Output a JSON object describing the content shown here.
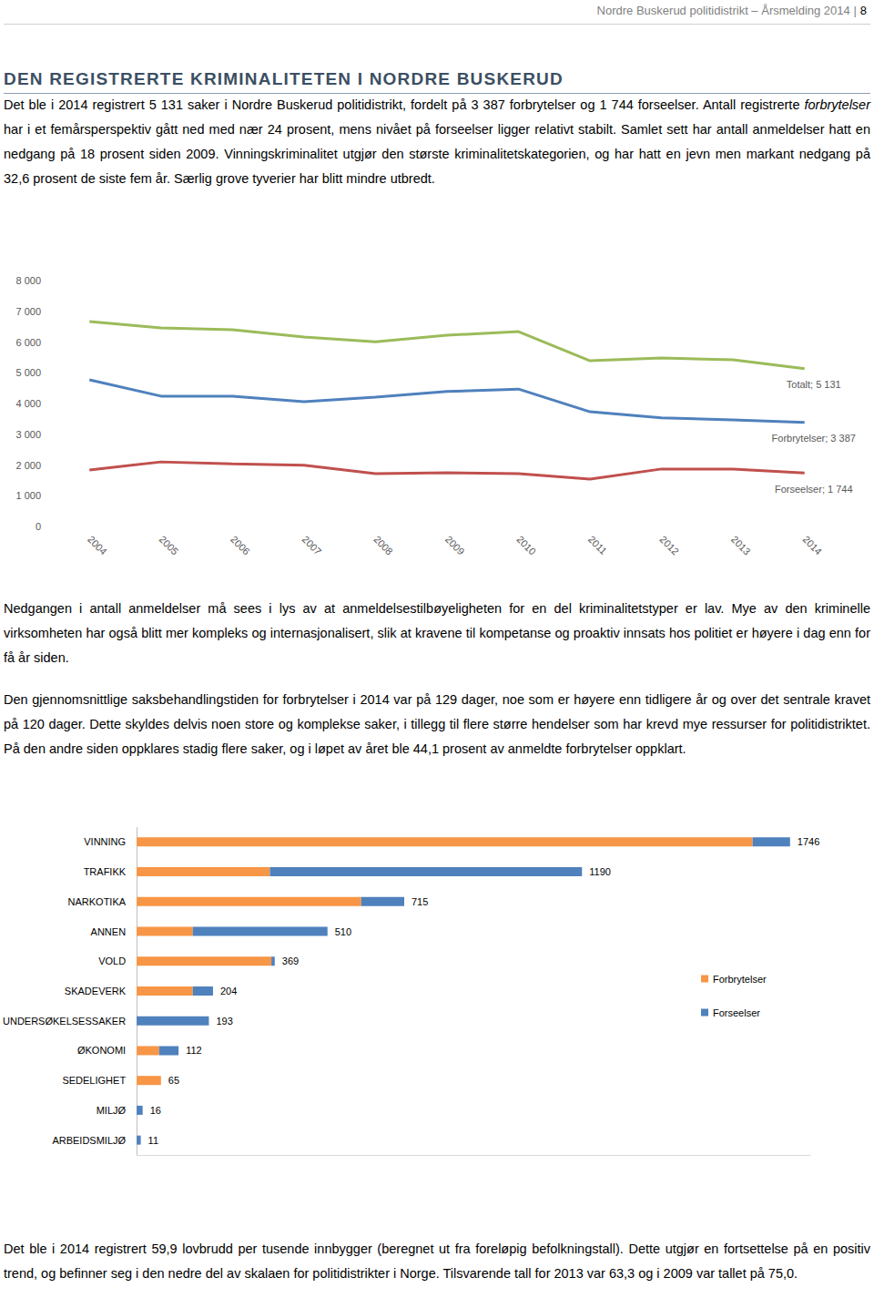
{
  "header": {
    "text": "Nordre Buskerud politidistrikt – Årsmelding 2014 |",
    "page": "8"
  },
  "title": "DEN REGISTRERTE KRIMINALITETEN I NORDRE BUSKERUD",
  "intro": [
    {
      "text": "Det ble i 2014 registrert 5 131 saker i Nordre Buskerud politidistrikt, fordelt på 3 387 forbrytelser og 1 744 forseelser. Antall registrerte "
    },
    {
      "text": "forbrytelser",
      "italic": true
    },
    {
      "text": " har i et femårsperspektiv gått ned med nær 24 prosent, mens nivået på forseelser ligger relativt stabilt. Samlet sett har antall anmeldelser hatt en nedgang på 18 prosent siden 2009. Vinningskriminalitet utgjør den største kriminalitetskategorien, og har hatt en jevn men markant nedgang på 32,6 prosent de siste fem år. Særlig grove tyverier har blitt mindre utbredt."
    }
  ],
  "chart_data": [
    {
      "type": "line",
      "categories": [
        "2004",
        "2005",
        "2006",
        "2007",
        "2008",
        "2009",
        "2010",
        "2011",
        "2012",
        "2013",
        "2014"
      ],
      "ylim": [
        0,
        8000
      ],
      "yticks": [
        0,
        {
          "value": 1000,
          "label": "1 000"
        },
        {
          "value": 2000,
          "label": "2 000"
        },
        {
          "value": 3000,
          "label": "3 000"
        },
        {
          "value": 4000,
          "label": "4 000"
        },
        {
          "value": 5000,
          "label": "5 000"
        },
        {
          "value": 6000,
          "label": "6 000"
        },
        {
          "value": 7000,
          "label": "7 000"
        },
        {
          "value": 8000,
          "label": "8 000"
        }
      ],
      "grid": false,
      "series": [
        {
          "name": "Totalt",
          "color": "#9bbb59",
          "values": [
            6670,
            6460,
            6400,
            6160,
            6010,
            6220,
            6340,
            5390,
            5480,
            5420,
            5131
          ]
        },
        {
          "name": "Forbrytelser",
          "color": "#4f81bd",
          "values": [
            4770,
            4240,
            4240,
            4060,
            4210,
            4390,
            4470,
            3730,
            3530,
            3470,
            3387
          ]
        },
        {
          "name": "Forseelser",
          "color": "#c0504d",
          "values": [
            1840,
            2100,
            2040,
            1990,
            1720,
            1750,
            1720,
            1540,
            1870,
            1870,
            1744
          ]
        }
      ],
      "annotations": [
        {
          "series": "Totalt",
          "text": "Totalt; 5 131"
        },
        {
          "series": "Forbrytelser",
          "text": "Forbrytelser; 3 387"
        },
        {
          "series": "Forseelser",
          "text": "Forseelser; 1 744"
        }
      ]
    },
    {
      "type": "bar",
      "orientation": "horizontal",
      "stacked": true,
      "categories": [
        "VINNING",
        "TRAFIKK",
        "NARKOTIKA",
        "ANNEN",
        "VOLD",
        "SKADEVERK",
        "UNDERSØKELSESSAKER",
        "ØKONOMI",
        "SEDELIGHET",
        "MILJØ",
        "ARBEIDSMILJØ"
      ],
      "series": [
        {
          "name": "Forbrytelser",
          "color": "#f79646",
          "values": [
            1646,
            356,
            600,
            150,
            360,
            150,
            0,
            60,
            65,
            0,
            0
          ]
        },
        {
          "name": "Forseelser",
          "color": "#4f81bd",
          "values": [
            100,
            834,
            115,
            360,
            9,
            54,
            193,
            52,
            0,
            16,
            11
          ]
        }
      ],
      "totals": [
        1746,
        1190,
        715,
        510,
        369,
        204,
        193,
        112,
        65,
        16,
        11
      ],
      "xlim": [
        0,
        1800
      ],
      "tick_labels": "y",
      "legend": "right",
      "grid": false
    }
  ],
  "paragraphs": [
    "Nedgangen i antall anmeldelser må sees i lys av at anmeldelsestilbøyeligheten for en del kriminalitetstyper er lav. Mye av den kriminelle virksomheten har også blitt mer kompleks og internasjonalisert, slik at kravene til kompetanse og proaktiv innsats hos politiet er høyere i dag enn for få år siden.",
    "Den gjennomsnittlige saksbehandlingstiden for forbrytelser i 2014 var på 129 dager, noe som er høyere enn tidligere år og over det sentrale kravet på 120 dager. Dette skyldes delvis noen store og komplekse saker, i tillegg til flere større hendelser som har krevd mye ressurser for politidistriktet. På den andre siden oppklares stadig flere saker, og i løpet av året ble 44,1 prosent av anmeldte forbrytelser oppklart."
  ],
  "final_paragraph": "Det ble i 2014 registrert 59,9 lovbrudd per tusende innbygger (beregnet ut fra foreløpig befolkningstall). Dette utgjør en fortsettelse på en positiv trend, og befinner seg i den nedre del av skalaen for politidistrikter i Norge. Tilsvarende tall for 2013 var 63,3 og i 2009 var tallet på 75,0."
}
